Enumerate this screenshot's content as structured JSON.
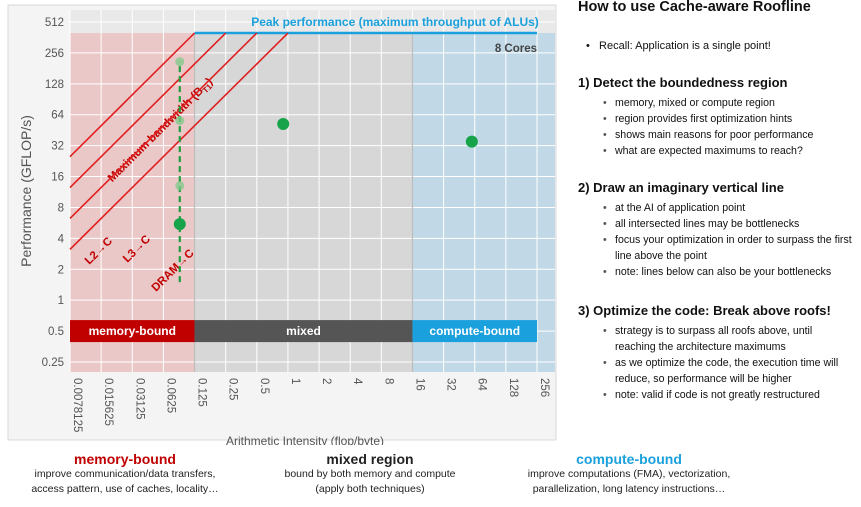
{
  "chart_data": {
    "type": "scatter",
    "ylabel": "Performance (GFLOP/s)",
    "xlabel": "Arithmetic Intensity (flop/byte)",
    "x_scale": "log2",
    "y_scale": "log2",
    "xlim": [
      0.0078125,
      256
    ],
    "ylim": [
      0.25,
      512
    ],
    "x_ticks": [
      "0.0078125",
      "0.015625",
      "0.03125",
      "0.0625",
      "0.125",
      "0.25",
      "0.5",
      "1",
      "2",
      "4",
      "8",
      "16",
      "32",
      "64",
      "128",
      "256"
    ],
    "y_ticks": [
      "512",
      "256",
      "128",
      "64",
      "32",
      "16",
      "8",
      "4",
      "2",
      "1",
      "0.5",
      "0.25"
    ],
    "peak_label": "Peak performance (maximum throughput of ALUs)",
    "peak_gflops": 400,
    "cores_label": "8 Cores",
    "bandwidth_roofs": [
      {
        "label": "Maximum bandwidth (B",
        "sub": "T1",
        "label_end": ")",
        "gflops_at_ai_1": 3200
      },
      {
        "label": "L2→C",
        "gflops_at_ai_1": 1600
      },
      {
        "label": "L3→C",
        "gflops_at_ai_1": 800
      },
      {
        "label": "DRAM→C",
        "gflops_at_ai_1": 400
      }
    ],
    "regions": [
      {
        "name": "memory-bound",
        "color": "#c00000",
        "x_range": [
          0.0078125,
          0.125
        ]
      },
      {
        "name": "mixed",
        "color": "#555555",
        "x_range": [
          0.125,
          16
        ]
      },
      {
        "name": "compute-bound",
        "color": "#1aa0dc",
        "x_range": [
          16,
          256
        ]
      }
    ],
    "points": [
      {
        "x": 0.09,
        "y": 5.5
      },
      {
        "x": 0.9,
        "y": 52
      },
      {
        "x": 60,
        "y": 35
      }
    ],
    "vertical_line": {
      "x": 0.09,
      "y_range": [
        1.5,
        210
      ],
      "markers_y": [
        13,
        56,
        210
      ]
    }
  },
  "right_panel": {
    "title": "How to use Cache-aware Roofline",
    "recall": "Recall: Application is a single point!",
    "steps": [
      {
        "title": "1) Detect the boundedness region",
        "bullets": [
          "memory, mixed or compute region",
          "region provides first optimization hints",
          "shows main reasons for poor performance",
          "what are expected maximums to reach?"
        ]
      },
      {
        "title": "2) Draw an imaginary vertical line",
        "bullets": [
          "at the AI of application point",
          "all intersected lines may be bottlenecks",
          "focus your optimization in order to surpass the first line above the point",
          "note: lines below can also be your bottlenecks"
        ]
      },
      {
        "title": "3) Optimize the code: Break above roofs!",
        "bullets": [
          "strategy is to surpass all roofs above, until reaching the architecture maximums",
          "as we optimize the code, the execution time will reduce, so performance will be higher",
          "note: valid if code is not greatly restructured"
        ]
      }
    ]
  },
  "bottom": [
    {
      "title": "memory-bound",
      "color": "#c00000",
      "desc": [
        "improve communication/data transfers,",
        "access pattern, use of caches, locality…"
      ]
    },
    {
      "title": "mixed region",
      "color": "#222222",
      "desc": [
        "bound by both memory and compute",
        "(apply both techniques)"
      ]
    },
    {
      "title": "compute-bound",
      "color": "#1aa0dc",
      "desc": [
        "improve computations (FMA), vectorization,",
        "parallelization, long latency instructions…"
      ]
    }
  ]
}
